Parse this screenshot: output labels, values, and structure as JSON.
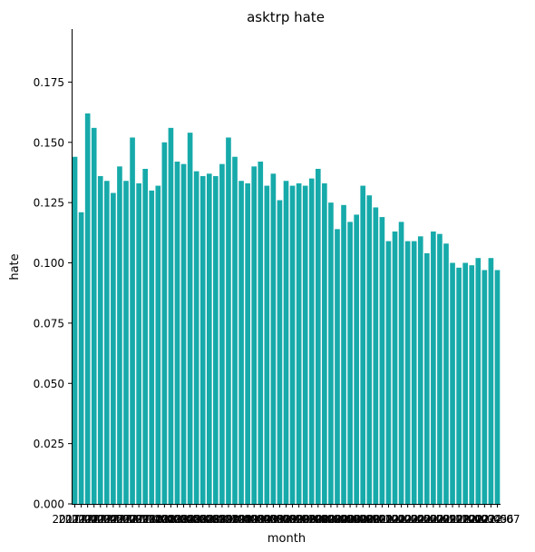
{
  "chart_data": {
    "type": "bar",
    "title": "asktrp hate",
    "xlabel": "month",
    "ylabel": "hate",
    "ylim": [
      0,
      0.197
    ],
    "yticks": [
      "0.000",
      "0.025",
      "0.050",
      "0.075",
      "0.100",
      "0.125",
      "0.150",
      "0.175"
    ],
    "bar_color": "#17aaaa",
    "grid": false,
    "categories": [
      "2017-01",
      "2017-02",
      "2017-03",
      "2017-04",
      "2017-05",
      "2017-06",
      "2017-07",
      "2017-08",
      "2017-09",
      "2017-10",
      "2017-11",
      "2017-12",
      "2018-01",
      "2018-02",
      "2018-03",
      "2018-04",
      "2018-05",
      "2018-06",
      "2018-07",
      "2018-08",
      "2018-09",
      "2018-10",
      "2018-11",
      "2018-12",
      "2019-01",
      "2019-02",
      "2019-03",
      "2019-04",
      "2019-05",
      "2019-06",
      "2019-07",
      "2019-08",
      "2019-09",
      "2019-10",
      "2019-11",
      "2019-12",
      "2020-01",
      "2020-02",
      "2020-03",
      "2020-04",
      "2020-05",
      "2020-06",
      "2020-07",
      "2020-08",
      "2020-09",
      "2020-10",
      "2020-11",
      "2020-12",
      "2021-01",
      "2021-02",
      "2021-03",
      "2021-04",
      "2021-05",
      "2021-06",
      "2021-07",
      "2021-08",
      "2021-09",
      "2021-10",
      "2021-11",
      "2021-12",
      "2022-01",
      "2022-02",
      "2022-03",
      "2022-04",
      "2022-05",
      "2022-06",
      "2022-07"
    ],
    "values": [
      0.144,
      0.121,
      0.162,
      0.156,
      0.136,
      0.134,
      0.129,
      0.14,
      0.134,
      0.152,
      0.133,
      0.139,
      0.13,
      0.132,
      0.15,
      0.156,
      0.142,
      0.141,
      0.154,
      0.138,
      0.136,
      0.137,
      0.136,
      0.141,
      0.152,
      0.144,
      0.134,
      0.133,
      0.14,
      0.142,
      0.132,
      0.137,
      0.126,
      0.134,
      0.132,
      0.133,
      0.132,
      0.135,
      0.139,
      0.133,
      0.125,
      0.114,
      0.124,
      0.117,
      0.12,
      0.132,
      0.128,
      0.123,
      0.119,
      0.109,
      0.113,
      0.117,
      0.109,
      0.109,
      0.111,
      0.104,
      0.113,
      0.112,
      0.108,
      0.1,
      0.098,
      0.1,
      0.099,
      0.102,
      0.097,
      0.102,
      0.097
    ]
  }
}
